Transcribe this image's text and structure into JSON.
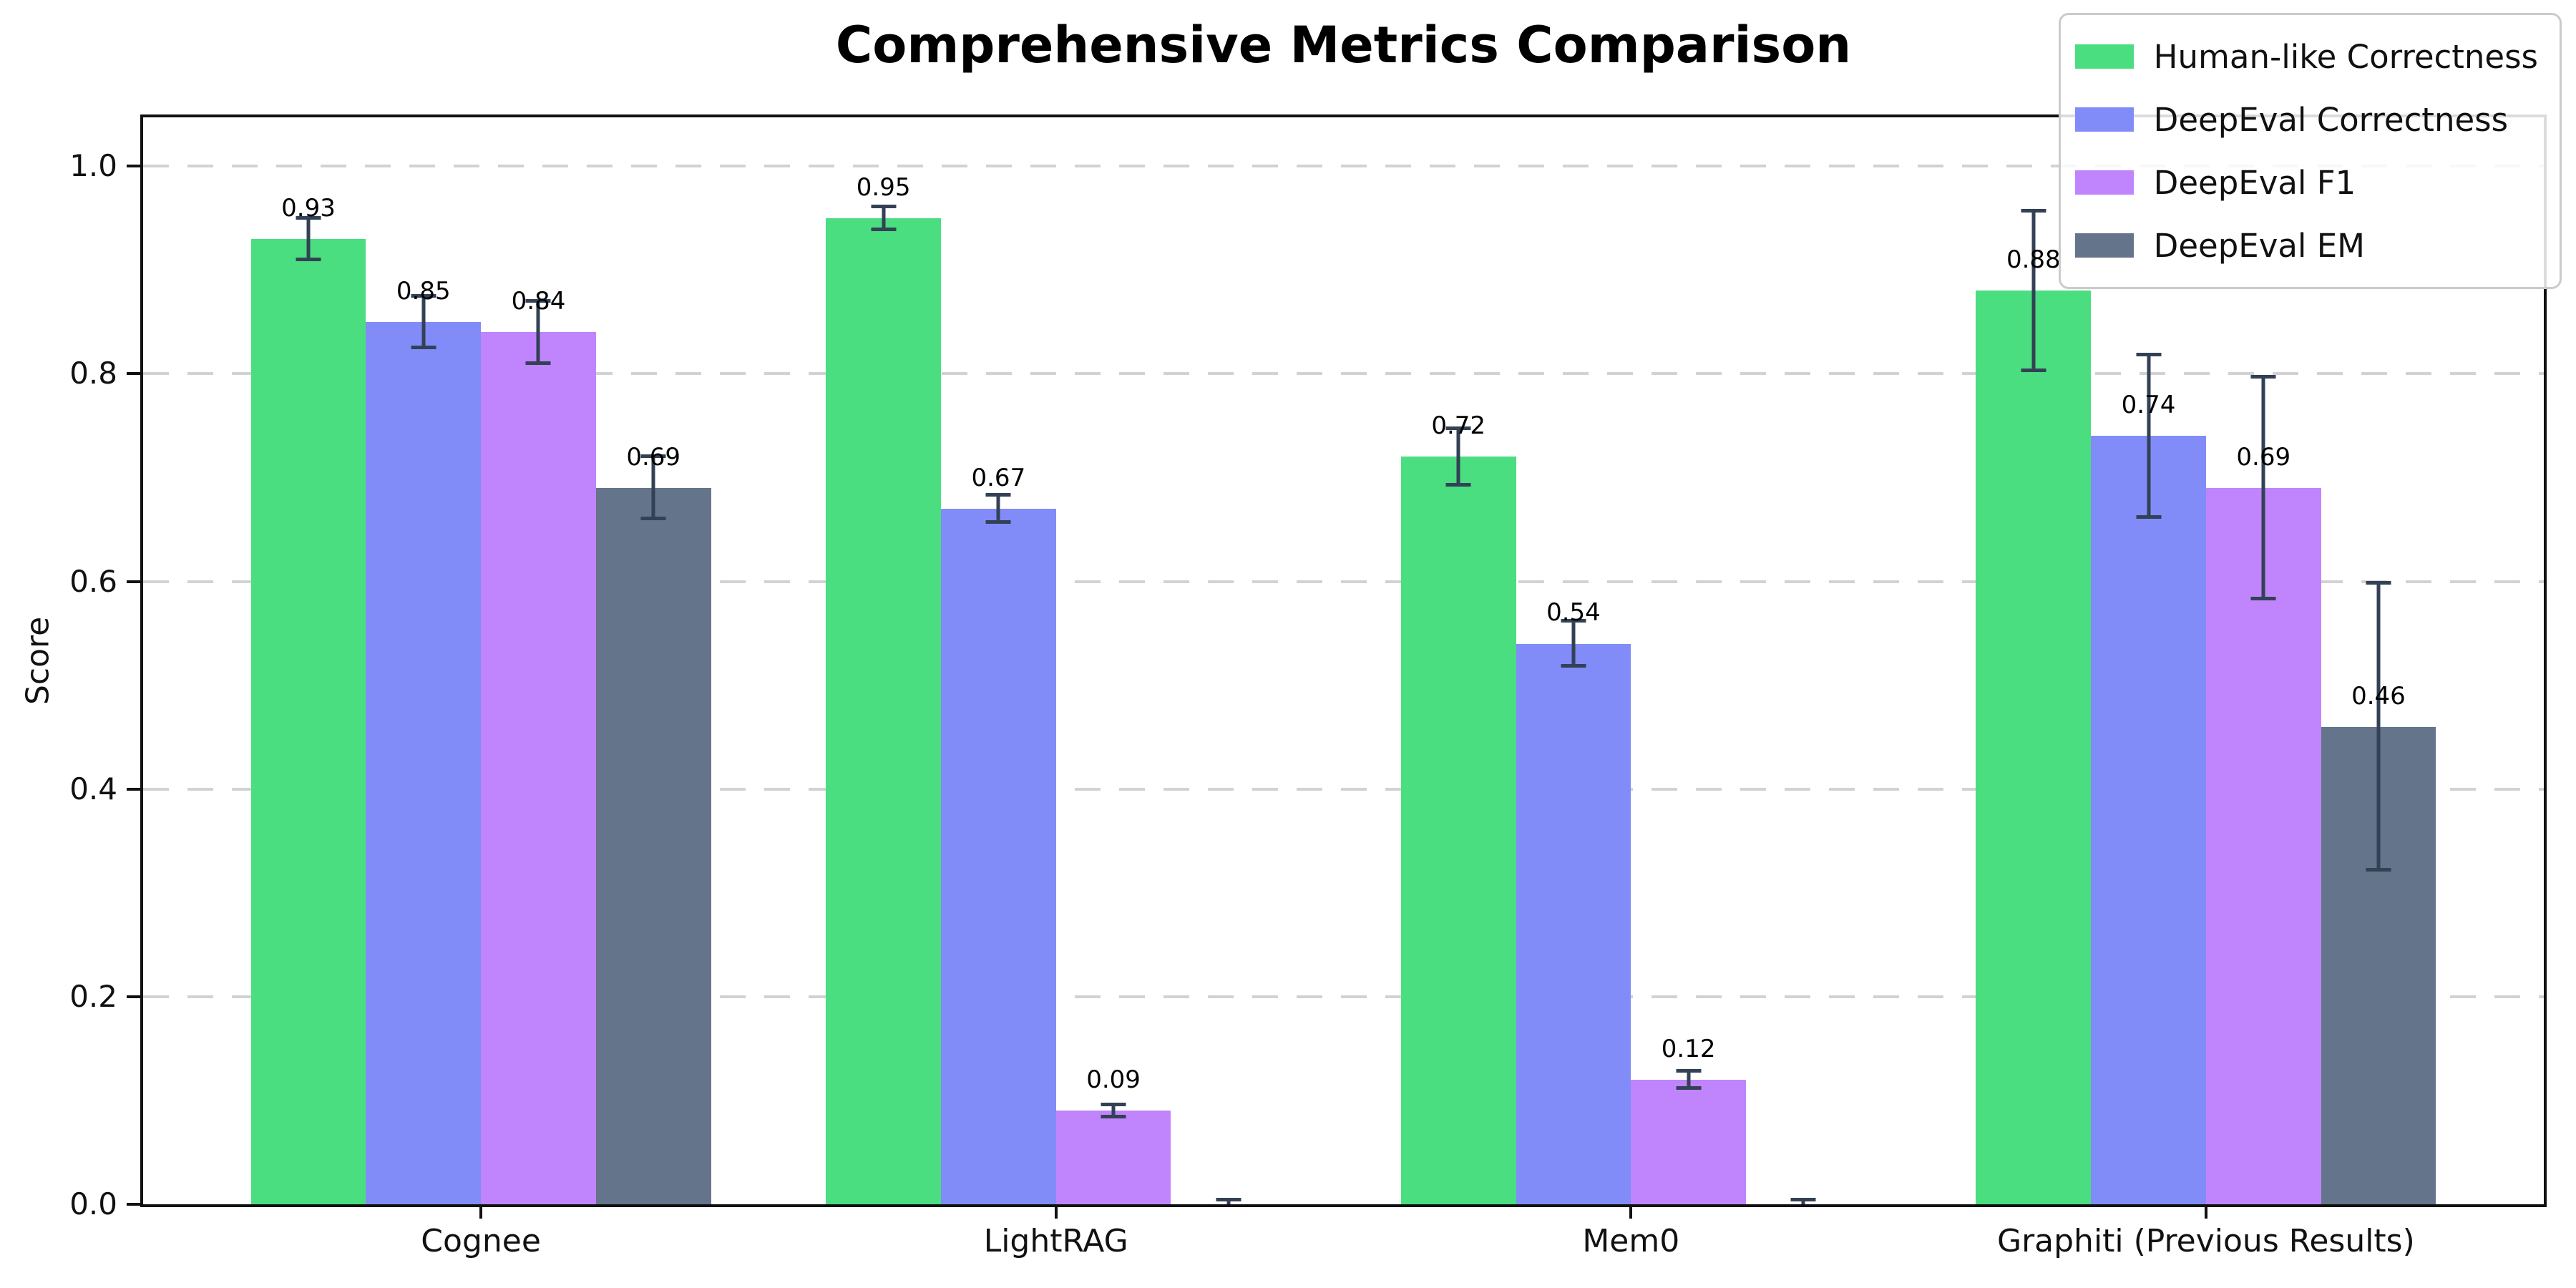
{
  "chart_data": {
    "type": "bar",
    "title": "Comprehensive Metrics Comparison",
    "ylabel": "Score",
    "xlabel": "",
    "categories": [
      "Cognee",
      "LightRAG",
      "Mem0",
      "Graphiti (Previous Results)"
    ],
    "series": [
      {
        "name": "Human-like Correctness",
        "color": "#4ade80",
        "values": [
          0.93,
          0.95,
          0.72,
          0.88
        ],
        "errors": [
          0.02,
          0.011,
          0.027,
          0.077
        ],
        "labels": [
          "0.93",
          "0.95",
          "0.72",
          "0.88"
        ]
      },
      {
        "name": "DeepEval Correctness",
        "color": "#818cf8",
        "values": [
          0.85,
          0.67,
          0.54,
          0.74
        ],
        "errors": [
          0.025,
          0.013,
          0.022,
          0.078
        ],
        "labels": [
          "0.85",
          "0.67",
          "0.54",
          "0.74"
        ]
      },
      {
        "name": "DeepEval F1",
        "color": "#c084fc",
        "values": [
          0.84,
          0.09,
          0.12,
          0.69
        ],
        "errors": [
          0.03,
          0.006,
          0.008,
          0.107
        ],
        "labels": [
          "0.84",
          "0.09",
          "0.12",
          "0.69"
        ]
      },
      {
        "name": "DeepEval EM",
        "color": "#64748b",
        "values": [
          0.69,
          0.0,
          0.0,
          0.46
        ],
        "errors": [
          0.03,
          0.004,
          0.004,
          0.138
        ],
        "labels": [
          "0.69",
          "",
          "",
          "0.46"
        ]
      }
    ],
    "yticks": [
      "0.0",
      "0.2",
      "0.4",
      "0.6",
      "0.8",
      "1.0"
    ],
    "ylim": [
      0,
      1.047
    ],
    "grid": {
      "axis": "y",
      "style": "dashed",
      "color": "#d2d2d2"
    },
    "legend": {
      "position": "upper right",
      "framed": true
    },
    "errorbar_color": "#334155"
  }
}
